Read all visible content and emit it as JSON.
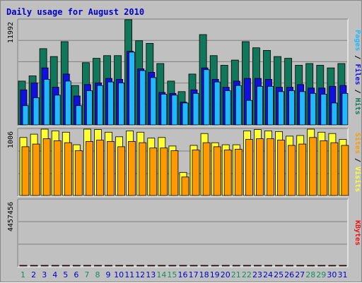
{
  "title": "Daily usage for August 2010",
  "colors": {
    "background": "#c0c0c0",
    "panel": "#c0c0c0",
    "title_text": "#0000cc",
    "hits": "#10775a",
    "files": "#1010e0",
    "pages": "#20b8ff",
    "visits": "#ffff33",
    "sites": "#ff9900",
    "kbytes": "#ee1111",
    "weekend_day": "#109060",
    "weekday_day": "#0000cc",
    "gridline": "#808080"
  },
  "chart_data": [
    {
      "type": "bar",
      "title": "Daily usage for August 2010",
      "ymax_label": "11992",
      "ylim": [
        0,
        11992
      ],
      "legend": [
        "Pages",
        "Files",
        "Hits"
      ],
      "legend_separator": " / ",
      "x": [
        1,
        2,
        3,
        4,
        5,
        6,
        7,
        8,
        9,
        10,
        11,
        12,
        13,
        14,
        15,
        16,
        17,
        18,
        19,
        20,
        21,
        22,
        23,
        24,
        25,
        26,
        27,
        28,
        29,
        30,
        31
      ],
      "series": [
        {
          "name": "Hits",
          "color_key": "hits",
          "values": [
            5000,
            5600,
            8700,
            7800,
            9500,
            4500,
            7100,
            7600,
            7900,
            7900,
            12000,
            9600,
            9300,
            7000,
            5000,
            3800,
            5800,
            10300,
            7900,
            6800,
            7400,
            9500,
            8800,
            8500,
            7800,
            7600,
            6800,
            7000,
            6800,
            6500,
            7000
          ]
        },
        {
          "name": "Files",
          "color_key": "files",
          "values": [
            4000,
            4800,
            6500,
            4300,
            5800,
            3300,
            4600,
            4800,
            5300,
            5200,
            8400,
            6400,
            6000,
            3700,
            3600,
            2600,
            4000,
            6500,
            5200,
            4300,
            5000,
            5300,
            5300,
            5200,
            4300,
            4300,
            4600,
            4200,
            4200,
            4400,
            4500
          ]
        },
        {
          "name": "Pages",
          "color_key": "pages",
          "values": [
            2200,
            3100,
            5200,
            3400,
            5000,
            2200,
            3900,
            4500,
            4900,
            4800,
            8300,
            6200,
            5400,
            3500,
            3400,
            2500,
            3600,
            6300,
            4900,
            3900,
            4500,
            2800,
            4400,
            4400,
            3800,
            3900,
            3800,
            3600,
            3500,
            2500,
            3600
          ]
        }
      ]
    },
    {
      "type": "bar",
      "ymax_label": "1006",
      "ylim": [
        0,
        1006
      ],
      "legend": [
        "Sites",
        "Visits"
      ],
      "legend_separator": " / ",
      "x": [
        1,
        2,
        3,
        4,
        5,
        6,
        7,
        8,
        9,
        10,
        11,
        12,
        13,
        14,
        15,
        16,
        17,
        18,
        19,
        20,
        21,
        22,
        23,
        24,
        25,
        26,
        27,
        28,
        29,
        30,
        31
      ],
      "series": [
        {
          "name": "Visits",
          "color_key": "visits",
          "values": [
            880,
            930,
            1006,
            980,
            960,
            770,
            1006,
            1000,
            960,
            890,
            980,
            960,
            870,
            880,
            750,
            350,
            760,
            940,
            800,
            770,
            770,
            980,
            1000,
            980,
            970,
            900,
            910,
            1006,
            960,
            940,
            850
          ]
        },
        {
          "name": "Sites",
          "color_key": "sites",
          "values": [
            740,
            780,
            860,
            830,
            800,
            680,
            820,
            840,
            820,
            740,
            820,
            800,
            720,
            720,
            680,
            280,
            690,
            800,
            740,
            690,
            700,
            850,
            860,
            860,
            840,
            760,
            780,
            880,
            830,
            800,
            760
          ]
        }
      ]
    },
    {
      "type": "bar",
      "ymax_label": "4457456",
      "ylim": [
        0,
        4457456
      ],
      "legend": [
        "KBytes"
      ],
      "x": [
        1,
        2,
        3,
        4,
        5,
        6,
        7,
        8,
        9,
        10,
        11,
        12,
        13,
        14,
        15,
        16,
        17,
        18,
        19,
        20,
        21,
        22,
        23,
        24,
        25,
        26,
        27,
        28,
        29,
        30,
        31
      ],
      "series": [
        {
          "name": "KBytes",
          "color_key": "kbytes",
          "values": [
            2360,
            2780,
            2550,
            1120,
            3560,
            2680,
            1880,
            2760,
            1380,
            2500,
            2050,
            1950,
            1950,
            2640,
            1020,
            420,
            2250,
            1950,
            2460,
            1100,
            2000,
            2250,
            2500,
            2560,
            2500,
            2300,
            4000,
            1300,
            2080,
            2860,
            2380
          ]
        }
      ]
    }
  ],
  "x_axis": {
    "days": [
      "1",
      "2",
      "3",
      "4",
      "5",
      "6",
      "7",
      "8",
      "9",
      "10",
      "11",
      "12",
      "13",
      "14",
      "15",
      "16",
      "17",
      "18",
      "19",
      "20",
      "21",
      "22",
      "23",
      "24",
      "25",
      "26",
      "27",
      "28",
      "29",
      "30",
      "31"
    ],
    "weekend_days": [
      1,
      7,
      8,
      14,
      15,
      21,
      22,
      28,
      29
    ]
  }
}
